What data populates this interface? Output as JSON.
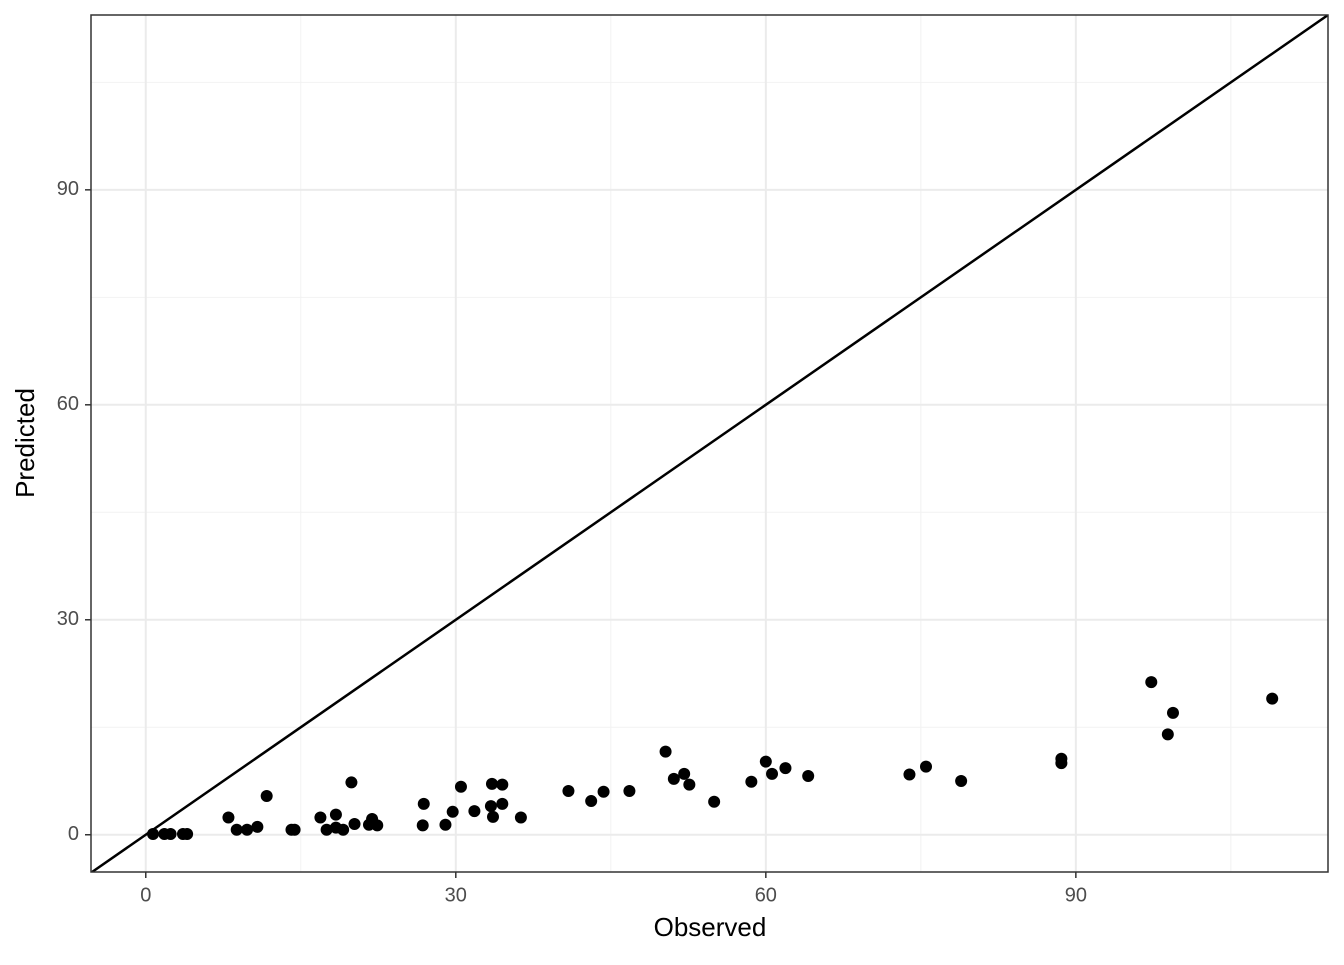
{
  "chart_data": {
    "type": "scatter",
    "xlabel": "Observed",
    "ylabel": "Predicted",
    "x": [
      0.7,
      1.8,
      2.4,
      3.6,
      4.0,
      8.0,
      8.8,
      9.8,
      10.8,
      11.7,
      14.1,
      14.4,
      16.9,
      17.5,
      18.4,
      18.4,
      19.1,
      19.9,
      20.2,
      21.9,
      21.6,
      22.4,
      26.8,
      26.9,
      29.0,
      29.7,
      30.5,
      31.8,
      33.4,
      33.5,
      33.6,
      34.5,
      34.5,
      36.3,
      40.9,
      43.1,
      44.3,
      46.8,
      50.3,
      51.1,
      52.1,
      52.6,
      55.0,
      58.6,
      60.0,
      60.6,
      61.9,
      64.1,
      73.9,
      75.5,
      78.9,
      88.6,
      88.6,
      97.3,
      98.9,
      99.4,
      109.0
    ],
    "y": [
      0.1,
      0.1,
      0.1,
      0.1,
      0.1,
      2.4,
      0.7,
      0.7,
      1.1,
      5.4,
      0.7,
      0.7,
      2.4,
      0.7,
      2.8,
      1.0,
      0.7,
      7.3,
      1.5,
      2.2,
      1.4,
      1.3,
      1.3,
      4.3,
      1.4,
      3.2,
      6.7,
      3.3,
      4.0,
      7.1,
      2.5,
      7.0,
      4.3,
      2.4,
      6.1,
      4.7,
      6.0,
      6.1,
      11.6,
      7.8,
      8.5,
      7.0,
      4.6,
      7.4,
      10.2,
      8.5,
      9.3,
      8.2,
      8.4,
      9.5,
      7.5,
      10.6,
      10.0,
      21.3,
      14.0,
      17.0,
      19.0
    ],
    "color": "#000000",
    "xlim": [
      -5.3,
      114.4
    ],
    "ylim": [
      -5.2,
      114.4
    ],
    "xticks": [
      0,
      30,
      60,
      90
    ],
    "yticks": [
      0,
      30,
      60,
      90
    ],
    "xminor": [
      15,
      45,
      75,
      105
    ],
    "yminor": [
      15,
      45,
      75,
      105
    ],
    "grid": true,
    "reference_line": {
      "slope": 1,
      "intercept": 0
    }
  }
}
